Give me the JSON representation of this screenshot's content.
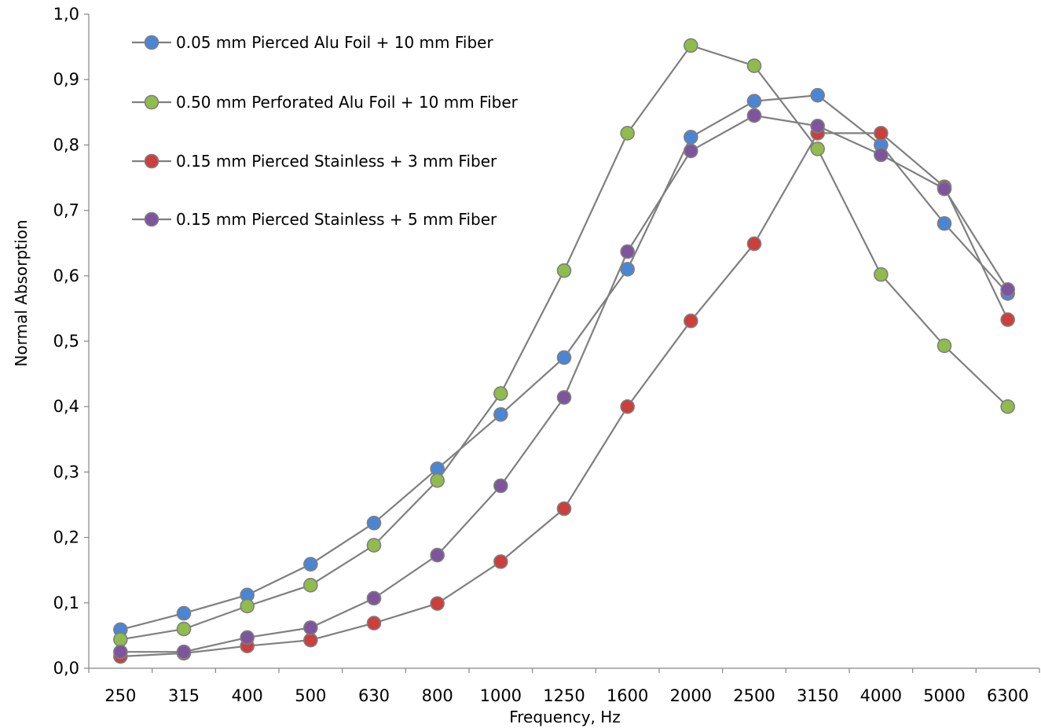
{
  "chart_data": {
    "type": "line",
    "title": "",
    "xlabel": "Frequency, Hz",
    "ylabel": "Normal Absorption",
    "categories": [
      "250",
      "315",
      "400",
      "500",
      "630",
      "800",
      "1000",
      "1250",
      "1600",
      "2000",
      "2500",
      "3150",
      "4000",
      "5000",
      "6300"
    ],
    "y_ticks": [
      "0,0",
      "0,1",
      "0,2",
      "0,3",
      "0,4",
      "0,5",
      "0,6",
      "0,7",
      "0,8",
      "0,9",
      "1,0"
    ],
    "ylim": [
      0,
      1.0
    ],
    "grid": false,
    "legend_position": "top-left",
    "line_color": "#7f7f7f",
    "series": [
      {
        "name": "0.05 mm  Pierced Alu Foil + 10 mm Fiber",
        "color": "#4a86d4",
        "values": [
          0.059,
          0.084,
          0.112,
          0.159,
          0.222,
          0.305,
          0.388,
          0.475,
          0.61,
          0.812,
          0.867,
          0.876,
          0.8,
          0.68,
          0.573
        ]
      },
      {
        "name": "0.50 mm Perforated Alu Foil + 10 mm Fiber",
        "color": "#8fbc4c",
        "values": [
          0.044,
          0.06,
          0.095,
          0.127,
          0.188,
          0.287,
          0.42,
          0.608,
          0.818,
          0.952,
          0.921,
          0.794,
          0.602,
          0.493,
          0.4
        ]
      },
      {
        "name": "0.15 mm Pierced Stainless + 3 mm Fiber",
        "color": "#cc3f3c",
        "values": [
          0.018,
          0.023,
          0.034,
          0.043,
          0.069,
          0.099,
          0.163,
          0.244,
          0.4,
          0.531,
          0.649,
          0.818,
          0.818,
          0.736,
          0.533
        ]
      },
      {
        "name": "0.15 mm Pierced Stainless + 5 mm Fiber",
        "color": "#7e559c",
        "values": [
          0.025,
          0.025,
          0.047,
          0.062,
          0.107,
          0.173,
          0.279,
          0.414,
          0.637,
          0.791,
          0.845,
          0.829,
          0.785,
          0.733,
          0.579
        ]
      }
    ]
  }
}
